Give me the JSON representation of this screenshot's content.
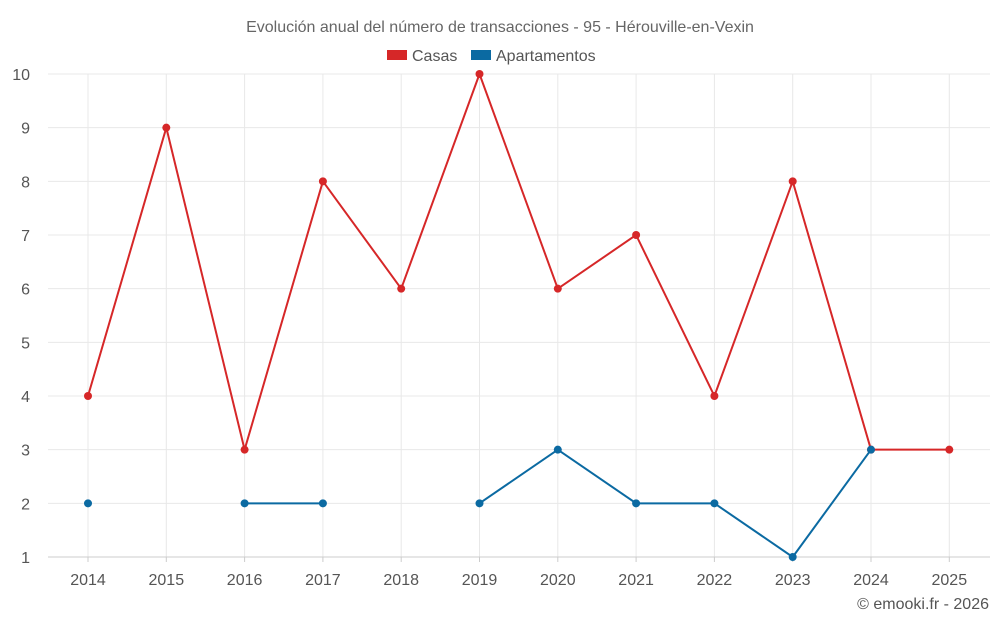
{
  "chart_data": {
    "type": "line",
    "title": "Evolución anual del número de transacciones - 95 - Hérouville-en-Vexin",
    "categories": [
      "2014",
      "2015",
      "2016",
      "2017",
      "2018",
      "2019",
      "2020",
      "2021",
      "2022",
      "2023",
      "2024",
      "2025"
    ],
    "series": [
      {
        "name": "Casas",
        "color": "#d62728",
        "values": [
          4,
          9,
          3,
          8,
          6,
          10,
          6,
          7,
          4,
          8,
          3,
          3
        ]
      },
      {
        "name": "Apartamentos",
        "color": "#0b6aa2",
        "values": [
          2,
          null,
          2,
          2,
          null,
          2,
          3,
          2,
          2,
          1,
          3,
          null
        ]
      }
    ],
    "ylim": [
      1,
      10
    ],
    "yticks": [
      1,
      2,
      3,
      4,
      5,
      6,
      7,
      8,
      9,
      10
    ],
    "xlabel": "",
    "ylabel": "",
    "grid": true,
    "legend_position": "top-center",
    "credit": "© emooki.fr - 2026"
  }
}
